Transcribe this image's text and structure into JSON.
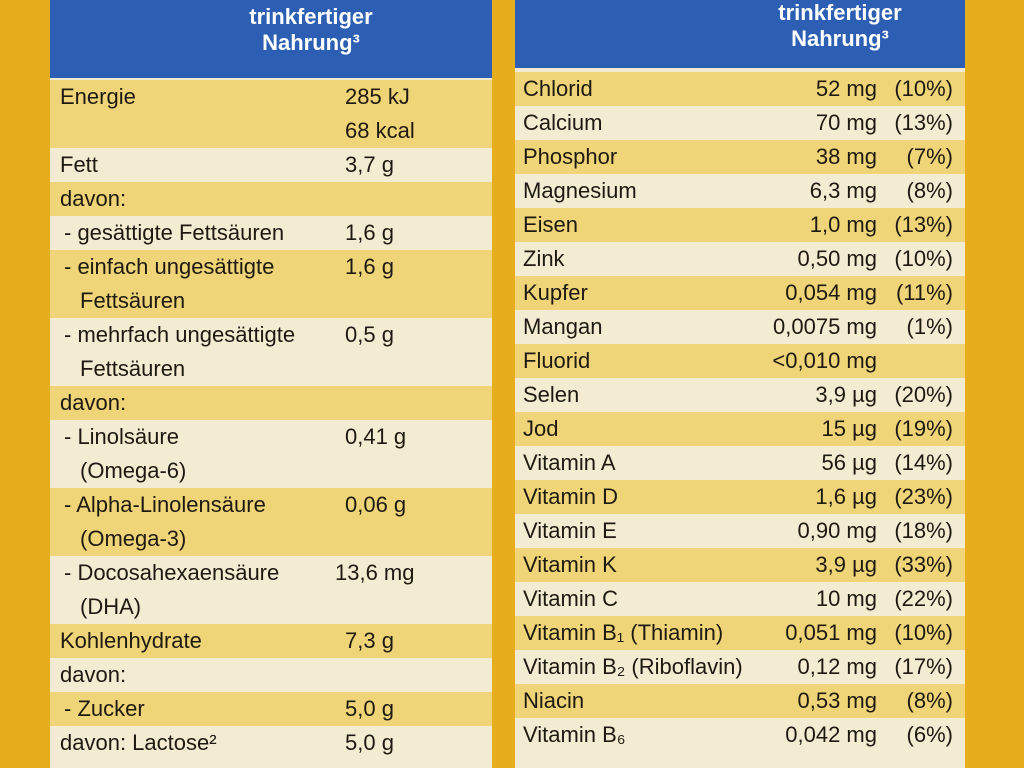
{
  "left": {
    "header": [
      "trinkfertiger",
      "Nahrung³"
    ],
    "rows": [
      {
        "label": [
          "Energie"
        ],
        "value": [
          "285 kJ",
          "68 kcal"
        ]
      },
      {
        "label": [
          "Fett"
        ],
        "value": [
          "3,7 g"
        ]
      },
      {
        "label": [
          "davon:"
        ]
      },
      {
        "label": [
          "- gesättigte Fettsäuren"
        ],
        "value": [
          "1,6 g"
        ]
      },
      {
        "label": [
          "- einfach ungesättigte",
          "Fettsäuren"
        ],
        "value": [
          "1,6 g"
        ]
      },
      {
        "label": [
          "- mehrfach ungesättigte",
          "Fettsäuren"
        ],
        "value": [
          "0,5 g"
        ]
      },
      {
        "label": [
          "davon:"
        ]
      },
      {
        "label": [
          "- Linolsäure",
          "(Omega-6)"
        ],
        "value": [
          "0,41 g"
        ]
      },
      {
        "label": [
          "- Alpha-Linolensäure",
          "(Omega-3)"
        ],
        "value": [
          "0,06 g"
        ]
      },
      {
        "label": [
          "- Docosahexaensäure",
          "(DHA)"
        ],
        "value": [
          "13,6 mg"
        ]
      },
      {
        "label": [
          "Kohlenhydrate"
        ],
        "value": [
          "7,3 g"
        ]
      },
      {
        "label": [
          "davon:"
        ]
      },
      {
        "label": [
          "- Zucker"
        ],
        "value": [
          "5,0 g"
        ]
      },
      {
        "label": [
          "davon: Lactose²"
        ],
        "value": [
          "5,0 g"
        ]
      }
    ]
  },
  "right": {
    "header": [
      "trinkfertiger",
      "Nahrung³"
    ],
    "rows": [
      [
        "Chlorid",
        "52 mg",
        "(10%)"
      ],
      [
        "Calcium",
        "70 mg",
        "(13%)"
      ],
      [
        "Phosphor",
        "38 mg",
        "(7%)"
      ],
      [
        "Magnesium",
        "6,3 mg",
        "(8%)"
      ],
      [
        "Eisen",
        "1,0 mg",
        "(13%)"
      ],
      [
        "Zink",
        "0,50 mg",
        "(10%)"
      ],
      [
        "Kupfer",
        "0,054 mg",
        "(11%)"
      ],
      [
        "Mangan",
        "0,0075 mg",
        "(1%)"
      ],
      [
        "Fluorid",
        "<0,010 mg"
      ],
      [
        "Selen",
        "3,9 µg",
        "(20%)"
      ],
      [
        "Jod",
        "15 µg",
        "(19%)"
      ],
      [
        "Vitamin A",
        "56 µg",
        "(14%)"
      ],
      [
        "Vitamin D",
        "1,6 µg",
        "(23%)"
      ],
      [
        "Vitamin E",
        "0,90 mg",
        "(18%)"
      ],
      [
        "Vitamin K",
        "3,9 µg",
        "(33%)"
      ],
      [
        "Vitamin C",
        "10 mg",
        "(22%)"
      ],
      [
        "Vitamin B₁ (Thiamin)",
        "0,051 mg",
        "(10%)"
      ],
      [
        "Vitamin B₂ (Riboflavin)",
        "0,12 mg",
        "(17%)"
      ],
      [
        "Niacin",
        "0,53 mg",
        "(8%)"
      ],
      [
        "Vitamin B₆",
        "0,042 mg",
        "(6%)"
      ]
    ]
  }
}
